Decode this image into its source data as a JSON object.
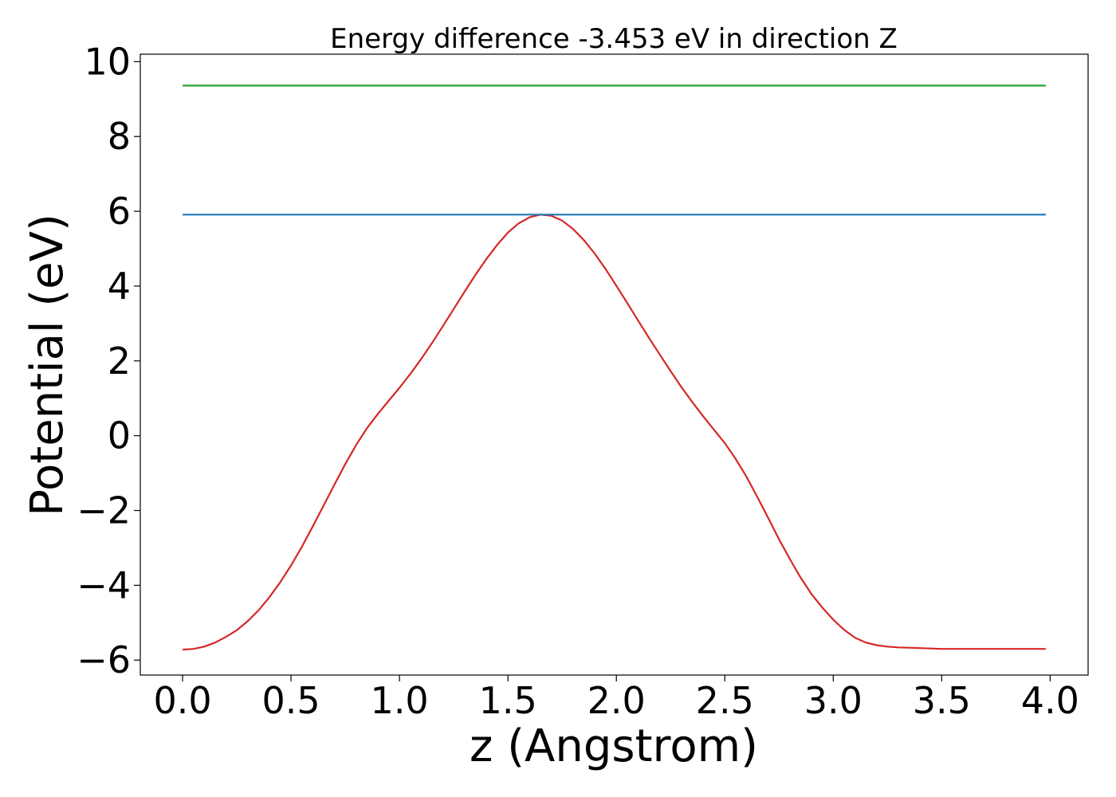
{
  "chart_data": {
    "type": "line",
    "title": "Energy difference -3.453 eV in direction Z",
    "xlabel": "z (Angstrom)",
    "ylabel": "Potential (eV)",
    "xlim": [
      -0.195,
      4.175
    ],
    "ylim": [
      -6.4,
      10.2
    ],
    "xticks": [
      0.0,
      0.5,
      1.0,
      1.5,
      2.0,
      2.5,
      3.0,
      3.5,
      4.0
    ],
    "xtick_labels": [
      "0.0",
      "0.5",
      "1.0",
      "1.5",
      "2.0",
      "2.5",
      "3.0",
      "3.5",
      "4.0"
    ],
    "yticks": [
      -6,
      -4,
      -2,
      0,
      2,
      4,
      6,
      8,
      10
    ],
    "ytick_labels": [
      "−6",
      "−4",
      "−2",
      "0",
      "2",
      "4",
      "6",
      "8",
      "10"
    ],
    "grid": false,
    "series": [
      {
        "color": "#d62728",
        "x": [
          0.0,
          0.05,
          0.1,
          0.15,
          0.2,
          0.25,
          0.3,
          0.35,
          0.4,
          0.45,
          0.5,
          0.55,
          0.6,
          0.65,
          0.7,
          0.75,
          0.8,
          0.85,
          0.9,
          0.95,
          1.0,
          1.05,
          1.1,
          1.15,
          1.2,
          1.25,
          1.3,
          1.35,
          1.4,
          1.45,
          1.5,
          1.55,
          1.6,
          1.65,
          1.7,
          1.75,
          1.8,
          1.85,
          1.9,
          1.95,
          2.0,
          2.05,
          2.1,
          2.15,
          2.2,
          2.25,
          2.3,
          2.35,
          2.4,
          2.45,
          2.5,
          2.55,
          2.6,
          2.65,
          2.7,
          2.75,
          2.8,
          2.85,
          2.9,
          2.95,
          3.0,
          3.05,
          3.1,
          3.15,
          3.2,
          3.25,
          3.3,
          3.35,
          3.4,
          3.45,
          3.5,
          3.55,
          3.6,
          3.65,
          3.7,
          3.75,
          3.8,
          3.85,
          3.9,
          3.95,
          3.98
        ],
        "y": [
          -5.72,
          -5.7,
          -5.64,
          -5.53,
          -5.38,
          -5.2,
          -4.96,
          -4.67,
          -4.32,
          -3.92,
          -3.47,
          -2.97,
          -2.43,
          -1.87,
          -1.31,
          -0.76,
          -0.25,
          0.2,
          0.58,
          0.93,
          1.28,
          1.65,
          2.05,
          2.48,
          2.93,
          3.39,
          3.85,
          4.3,
          4.72,
          5.1,
          5.43,
          5.68,
          5.84,
          5.91,
          5.88,
          5.75,
          5.53,
          5.23,
          4.87,
          4.46,
          4.01,
          3.55,
          3.08,
          2.62,
          2.17,
          1.73,
          1.3,
          0.9,
          0.52,
          0.16,
          -0.2,
          -0.62,
          -1.1,
          -1.64,
          -2.2,
          -2.77,
          -3.3,
          -3.8,
          -4.24,
          -4.6,
          -4.92,
          -5.19,
          -5.4,
          -5.53,
          -5.6,
          -5.64,
          -5.66,
          -5.67,
          -5.68,
          -5.69,
          -5.7,
          -5.7,
          -5.7,
          -5.7,
          -5.7,
          -5.7,
          -5.7,
          -5.7,
          -5.7,
          -5.7,
          -5.7
        ]
      },
      {
        "color": "#1f77b4",
        "x": [
          0.0,
          3.98
        ],
        "y": [
          5.91,
          5.91
        ]
      },
      {
        "color": "#2ca02c",
        "x": [
          0.0,
          3.98
        ],
        "y": [
          9.36,
          9.36
        ]
      }
    ]
  }
}
